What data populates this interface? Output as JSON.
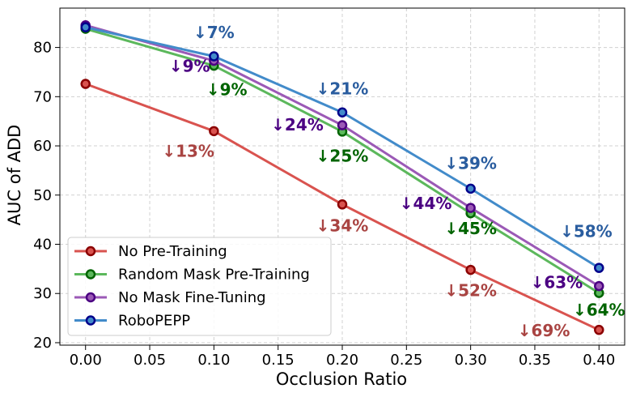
{
  "chart_data": {
    "type": "line",
    "title": "",
    "xlabel": "Occlusion Ratio",
    "ylabel": "AUC of ADD",
    "xlim": [
      -0.02,
      0.42
    ],
    "ylim": [
      19.5,
      88
    ],
    "x": [
      0.0,
      0.1,
      0.2,
      0.3,
      0.4
    ],
    "xticks": [
      0.0,
      0.05,
      0.1,
      0.15,
      0.2,
      0.25,
      0.3,
      0.35,
      0.4
    ],
    "xtick_labels": [
      "0.00",
      "0.05",
      "0.10",
      "0.15",
      "0.20",
      "0.25",
      "0.30",
      "0.35",
      "0.40"
    ],
    "yticks": [
      20,
      30,
      40,
      50,
      60,
      70,
      80
    ],
    "ytick_labels": [
      "20",
      "30",
      "40",
      "50",
      "60",
      "70",
      "80"
    ],
    "grid": true,
    "legend_position": "lower-left",
    "series": [
      {
        "name": "No Pre-Training",
        "color": "#d9534f",
        "marker_color": "#8b0000",
        "ann_color": "#a94442",
        "values": [
          72.6,
          63.0,
          48.1,
          34.8,
          22.6
        ],
        "annotations": [
          {
            "text": "↓13%",
            "x": 0.08,
            "y": 57.8
          },
          {
            "text": "↓34%",
            "x": 0.2,
            "y": 42.6
          },
          {
            "text": "↓52%",
            "x": 0.3,
            "y": 29.5
          },
          {
            "text": "↓69%",
            "x": 0.357,
            "y": 21.3
          }
        ]
      },
      {
        "name": "Random Mask Pre-Training",
        "color": "#5cb85c",
        "marker_color": "#006400",
        "ann_color": "#006400",
        "values": [
          83.8,
          76.3,
          62.9,
          46.3,
          30.1
        ],
        "annotations": [
          {
            "text": "↓9%",
            "x": 0.11,
            "y": 70.3
          },
          {
            "text": "↓25%",
            "x": 0.2,
            "y": 56.8
          },
          {
            "text": "↓45%",
            "x": 0.3,
            "y": 42.1
          },
          {
            "text": "↓64%",
            "x": 0.4,
            "y": 25.5
          }
        ]
      },
      {
        "name": "No Mask Fine-Tuning",
        "color": "#9b59b6",
        "marker_color": "#4b0082",
        "ann_color": "#4b0082",
        "values": [
          84.5,
          77.3,
          64.2,
          47.4,
          31.5
        ],
        "annotations": [
          {
            "text": "↓9%",
            "x": 0.081,
            "y": 75.1
          },
          {
            "text": "↓24%",
            "x": 0.165,
            "y": 63.1
          },
          {
            "text": "↓44%",
            "x": 0.265,
            "y": 47.2
          },
          {
            "text": "↓63%",
            "x": 0.367,
            "y": 31.1
          }
        ]
      },
      {
        "name": "RoboPEPP",
        "color": "#428bca",
        "marker_color": "#00008b",
        "ann_color": "#2a5d9f",
        "values": [
          84.1,
          78.2,
          66.8,
          51.3,
          35.2
        ],
        "annotations": [
          {
            "text": "↓7%",
            "x": 0.1,
            "y": 81.9
          },
          {
            "text": "↓21%",
            "x": 0.2,
            "y": 70.5
          },
          {
            "text": "↓39%",
            "x": 0.3,
            "y": 55.3
          },
          {
            "text": "↓58%",
            "x": 0.39,
            "y": 41.5
          }
        ]
      }
    ]
  }
}
